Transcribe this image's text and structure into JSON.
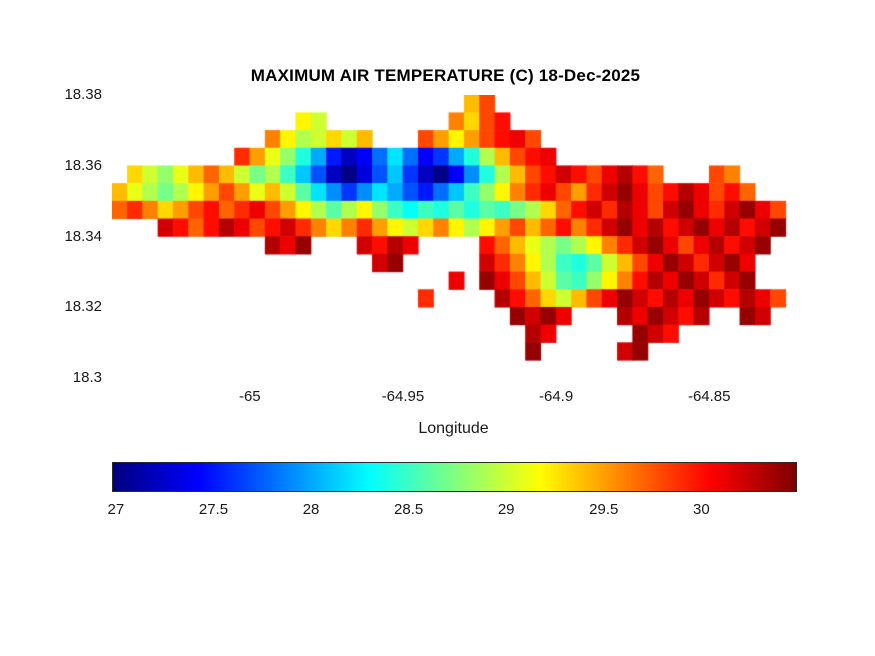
{
  "chart_data": {
    "type": "heatmap",
    "title": "MAXIMUM AIR TEMPERATURE (C) 18-Dec-2025",
    "xlabel": "Longitude",
    "ylabel": "",
    "colormap": "jet",
    "legend_position": "colorbar-bottom",
    "grid_lines": false,
    "xlim": [
      -65.045,
      -64.822
    ],
    "ylim": [
      18.3,
      18.38
    ],
    "clim": [
      26.98,
      30.48
    ],
    "x_ticks": [
      -65,
      -64.95,
      -64.9,
      -64.85
    ],
    "x_tick_labels": [
      "-65",
      "-64.95",
      "-64.9",
      "-64.85"
    ],
    "y_ticks": [
      18.38,
      18.36,
      18.34,
      18.32,
      18.3
    ],
    "y_tick_labels": [
      "18.38",
      "18.36",
      "18.34",
      "18.32",
      "18.3"
    ],
    "colorbar": {
      "orientation": "horizontal",
      "ticks": [
        27,
        27.5,
        28,
        28.5,
        29,
        29.5,
        30
      ],
      "tick_labels": [
        "27",
        "27.5",
        "28",
        "28.5",
        "29",
        "29.5",
        "30"
      ]
    },
    "grid": {
      "x_start": -65.045,
      "y_start": 18.38,
      "dx": 0.005,
      "dy": 0.005,
      "n_cols": 44,
      "n_rows": 16,
      "values": [
        [
          null,
          null,
          null,
          null,
          null,
          null,
          null,
          null,
          null,
          null,
          null,
          null,
          null,
          null,
          null,
          null,
          null,
          null,
          null,
          null,
          null,
          null,
          null,
          29.4,
          29.8,
          null,
          null,
          null,
          null,
          null,
          null,
          null,
          null,
          null,
          null,
          null,
          null,
          null,
          null,
          null,
          null,
          null,
          null,
          null
        ],
        [
          null,
          null,
          null,
          null,
          null,
          null,
          null,
          null,
          null,
          null,
          null,
          null,
          29.2,
          29.0,
          null,
          null,
          null,
          null,
          null,
          null,
          null,
          null,
          29.6,
          29.3,
          29.8,
          30.0,
          null,
          null,
          null,
          null,
          null,
          null,
          null,
          null,
          null,
          null,
          null,
          null,
          null,
          null,
          null,
          null,
          null,
          null
        ],
        [
          null,
          null,
          null,
          null,
          null,
          null,
          null,
          null,
          null,
          null,
          29.6,
          29.2,
          28.9,
          29.0,
          29.3,
          29.0,
          29.4,
          null,
          null,
          null,
          29.8,
          29.5,
          29.2,
          29.5,
          29.8,
          30.0,
          30.1,
          29.8,
          null,
          null,
          null,
          null,
          null,
          null,
          null,
          null,
          null,
          null,
          null,
          null,
          null,
          null,
          null,
          null
        ],
        [
          null,
          null,
          null,
          null,
          null,
          null,
          null,
          null,
          29.9,
          29.5,
          29.1,
          28.8,
          28.4,
          28.0,
          27.5,
          27.2,
          27.4,
          27.8,
          28.2,
          27.8,
          27.4,
          27.6,
          28.0,
          28.4,
          28.9,
          29.4,
          29.8,
          30.0,
          30.1,
          null,
          null,
          null,
          null,
          null,
          null,
          null,
          null,
          null,
          null,
          null,
          null,
          null,
          null,
          null
        ],
        [
          null,
          29.3,
          29.0,
          28.8,
          29.1,
          29.4,
          29.7,
          29.4,
          29.0,
          28.7,
          28.9,
          28.5,
          28.1,
          27.7,
          27.2,
          27.0,
          27.3,
          27.7,
          28.1,
          27.6,
          27.2,
          27.0,
          27.4,
          27.9,
          28.4,
          28.9,
          29.4,
          29.8,
          30.0,
          30.2,
          30.0,
          29.8,
          30.1,
          30.3,
          30.0,
          29.7,
          null,
          null,
          null,
          29.8,
          29.6,
          null,
          null,
          null
        ],
        [
          29.4,
          29.1,
          28.9,
          28.7,
          28.9,
          29.2,
          29.5,
          29.8,
          29.5,
          29.1,
          29.4,
          29.0,
          28.6,
          28.2,
          27.9,
          27.6,
          27.9,
          28.2,
          28.0,
          27.7,
          27.5,
          27.8,
          28.1,
          28.5,
          28.8,
          29.2,
          29.6,
          29.9,
          30.1,
          29.8,
          29.5,
          29.9,
          30.2,
          30.4,
          30.1,
          29.8,
          30.0,
          30.3,
          30.1,
          29.8,
          30.0,
          29.7,
          null,
          null
        ],
        [
          29.7,
          29.9,
          29.6,
          29.3,
          29.5,
          29.8,
          30.0,
          29.7,
          29.9,
          30.1,
          29.8,
          29.5,
          29.2,
          28.9,
          28.6,
          28.9,
          29.2,
          28.8,
          28.5,
          28.3,
          28.5,
          28.4,
          28.6,
          28.4,
          28.6,
          28.5,
          28.7,
          28.9,
          29.3,
          29.7,
          30.0,
          30.2,
          29.9,
          30.3,
          30.1,
          29.8,
          30.2,
          30.4,
          30.1,
          29.9,
          30.2,
          30.4,
          30.1,
          29.8
        ],
        [
          null,
          null,
          null,
          30.2,
          30.0,
          29.7,
          30.0,
          30.3,
          30.1,
          29.8,
          30.0,
          30.2,
          29.9,
          29.6,
          29.3,
          29.6,
          29.9,
          29.5,
          29.2,
          29.0,
          29.3,
          29.6,
          29.2,
          28.9,
          29.2,
          29.5,
          29.8,
          29.4,
          29.7,
          30.0,
          29.6,
          29.9,
          30.2,
          30.4,
          30.1,
          30.3,
          30.0,
          30.2,
          30.4,
          30.1,
          30.3,
          30.0,
          30.2,
          30.4
        ],
        [
          null,
          null,
          null,
          null,
          null,
          null,
          null,
          null,
          null,
          null,
          30.3,
          30.1,
          30.4,
          null,
          null,
          null,
          30.2,
          30.0,
          30.3,
          30.1,
          null,
          null,
          null,
          null,
          30.0,
          29.7,
          29.4,
          29.1,
          28.9,
          28.7,
          28.9,
          29.2,
          29.6,
          29.9,
          30.2,
          30.4,
          30.1,
          29.8,
          30.1,
          30.3,
          30.0,
          30.2,
          30.4,
          null
        ],
        [
          null,
          null,
          null,
          null,
          null,
          null,
          null,
          null,
          null,
          null,
          null,
          null,
          null,
          null,
          null,
          null,
          null,
          30.2,
          30.4,
          null,
          null,
          null,
          null,
          null,
          30.2,
          29.9,
          29.6,
          29.2,
          28.9,
          28.5,
          28.4,
          28.6,
          29.0,
          29.4,
          29.8,
          30.1,
          30.4,
          30.2,
          29.9,
          30.2,
          30.4,
          30.1,
          null,
          null
        ],
        [
          null,
          null,
          null,
          null,
          null,
          null,
          null,
          null,
          null,
          null,
          null,
          null,
          null,
          null,
          null,
          null,
          null,
          null,
          null,
          null,
          null,
          null,
          30.1,
          null,
          30.4,
          30.1,
          29.8,
          29.4,
          29.0,
          28.6,
          28.5,
          28.8,
          29.2,
          29.6,
          30.0,
          30.3,
          30.1,
          30.4,
          30.2,
          29.9,
          30.2,
          30.4,
          null,
          null
        ],
        [
          null,
          null,
          null,
          null,
          null,
          null,
          null,
          null,
          null,
          null,
          null,
          null,
          null,
          null,
          null,
          null,
          null,
          null,
          null,
          null,
          29.9,
          null,
          null,
          null,
          null,
          30.3,
          30.0,
          29.7,
          29.3,
          29.0,
          29.4,
          29.8,
          30.1,
          30.4,
          30.2,
          30.0,
          30.3,
          30.1,
          30.4,
          30.2,
          30.0,
          30.3,
          30.1,
          29.8
        ],
        [
          null,
          null,
          null,
          null,
          null,
          null,
          null,
          null,
          null,
          null,
          null,
          null,
          null,
          null,
          null,
          null,
          null,
          null,
          null,
          null,
          null,
          null,
          null,
          null,
          null,
          null,
          30.4,
          30.2,
          30.4,
          30.1,
          null,
          null,
          null,
          30.3,
          30.1,
          30.4,
          30.2,
          30.0,
          30.3,
          null,
          null,
          30.4,
          30.2,
          null
        ],
        [
          null,
          null,
          null,
          null,
          null,
          null,
          null,
          null,
          null,
          null,
          null,
          null,
          null,
          null,
          null,
          null,
          null,
          null,
          null,
          null,
          null,
          null,
          null,
          null,
          null,
          null,
          null,
          30.3,
          30.1,
          null,
          null,
          null,
          null,
          null,
          30.4,
          30.2,
          30.0,
          null,
          null,
          null,
          null,
          null,
          null,
          null
        ],
        [
          null,
          null,
          null,
          null,
          null,
          null,
          null,
          null,
          null,
          null,
          null,
          null,
          null,
          null,
          null,
          null,
          null,
          null,
          null,
          null,
          null,
          null,
          null,
          null,
          null,
          null,
          null,
          30.4,
          null,
          null,
          null,
          null,
          null,
          30.2,
          30.4,
          null,
          null,
          null,
          null,
          null,
          null,
          null,
          null,
          null
        ],
        [
          null,
          null,
          null,
          null,
          null,
          null,
          null,
          null,
          null,
          null,
          null,
          null,
          null,
          null,
          null,
          null,
          null,
          null,
          null,
          null,
          null,
          null,
          null,
          null,
          null,
          null,
          null,
          null,
          null,
          null,
          null,
          null,
          null,
          null,
          null,
          null,
          null,
          null,
          null,
          null,
          null,
          null,
          null,
          null
        ]
      ]
    }
  }
}
